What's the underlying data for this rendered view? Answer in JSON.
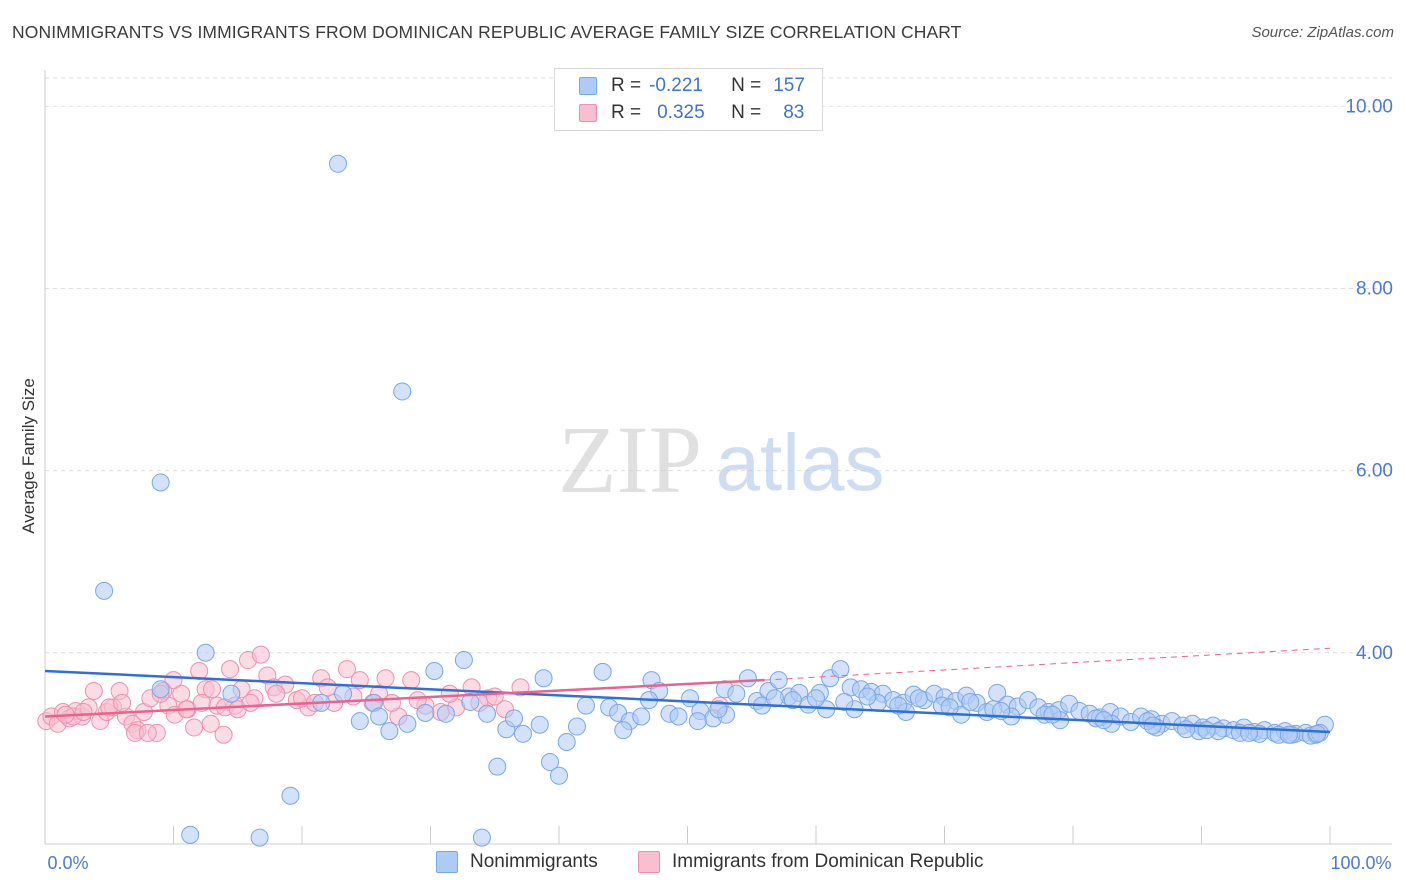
{
  "header": {
    "title": "NONIMMIGRANTS VS IMMIGRANTS FROM DOMINICAN REPUBLIC AVERAGE FAMILY SIZE CORRELATION CHART",
    "source": "Source: ZipAtlas.com"
  },
  "watermark": {
    "zip": "ZIP",
    "atlas": "atlas"
  },
  "stats_legend": {
    "rows": [
      {
        "r_label": "R =",
        "r_value": "-0.221",
        "n_label": "N =",
        "n_value": "157"
      },
      {
        "r_label": "R =",
        "r_value": "0.325",
        "n_label": "N =",
        "n_value": "83"
      }
    ]
  },
  "colors": {
    "blue_fill": "#aecbf5",
    "blue_stroke": "#7aa7e6",
    "blue_line": "#2f6fd6",
    "pink_fill": "#f7bfd0",
    "pink_stroke": "#ef8fb0",
    "pink_line": "#e8638f",
    "grid": "#dddddd",
    "axis_text": "#4a7bd0"
  },
  "chart_data": {
    "type": "scatter",
    "title": "NONIMMIGRANTS VS IMMIGRANTS FROM DOMINICAN REPUBLIC AVERAGE FAMILY SIZE CORRELATION CHART",
    "xlabel": "",
    "ylabel": "Average Family Size",
    "xlim": [
      0,
      100
    ],
    "ylim": [
      1.9,
      10.4
    ],
    "x_tick_labels": [
      "0.0%",
      "100.0%"
    ],
    "y_ticks": [
      4,
      6,
      8,
      10
    ],
    "y_tick_labels": [
      "4.00",
      "6.00",
      "8.00",
      "10.00"
    ],
    "legend_position": "bottom-center",
    "series": [
      {
        "name": "Nonimmigrants",
        "r": -0.221,
        "n": 157,
        "trend": {
          "x0": 0,
          "y0": 3.8,
          "x1": 100,
          "y1": 3.13
        },
        "points": [
          [
            22.8,
            9.37
          ],
          [
            27.8,
            6.87
          ],
          [
            9.0,
            5.87
          ],
          [
            4.6,
            4.68
          ],
          [
            12.5,
            4.0
          ],
          [
            19.1,
            2.43
          ],
          [
            11.3,
            2.0
          ],
          [
            16.7,
            1.97
          ],
          [
            34.0,
            1.97
          ],
          [
            32.6,
            3.92
          ],
          [
            30.3,
            3.8
          ],
          [
            38.8,
            3.72
          ],
          [
            43.4,
            3.79
          ],
          [
            47.2,
            3.7
          ],
          [
            35.2,
            2.75
          ],
          [
            39.3,
            2.8
          ],
          [
            40.0,
            2.65
          ],
          [
            26.8,
            3.14
          ],
          [
            24.5,
            3.25
          ],
          [
            25.6,
            3.45
          ],
          [
            28.2,
            3.22
          ],
          [
            29.6,
            3.34
          ],
          [
            31.2,
            3.33
          ],
          [
            33.1,
            3.46
          ],
          [
            34.4,
            3.33
          ],
          [
            35.9,
            3.16
          ],
          [
            37.2,
            3.11
          ],
          [
            38.5,
            3.21
          ],
          [
            40.6,
            3.02
          ],
          [
            41.4,
            3.19
          ],
          [
            42.1,
            3.42
          ],
          [
            43.9,
            3.4
          ],
          [
            44.6,
            3.34
          ],
          [
            45.5,
            3.25
          ],
          [
            46.4,
            3.3
          ],
          [
            47.8,
            3.58
          ],
          [
            48.6,
            3.33
          ],
          [
            49.3,
            3.3
          ],
          [
            50.2,
            3.5
          ],
          [
            51.0,
            3.36
          ],
          [
            52.0,
            3.28
          ],
          [
            52.9,
            3.6
          ],
          [
            53.8,
            3.55
          ],
          [
            54.7,
            3.72
          ],
          [
            55.4,
            3.47
          ],
          [
            56.3,
            3.58
          ],
          [
            57.1,
            3.7
          ],
          [
            57.9,
            3.52
          ],
          [
            58.7,
            3.56
          ],
          [
            59.4,
            3.43
          ],
          [
            60.3,
            3.56
          ],
          [
            61.1,
            3.72
          ],
          [
            61.9,
            3.82
          ],
          [
            62.7,
            3.62
          ],
          [
            63.5,
            3.6
          ],
          [
            64.3,
            3.57
          ],
          [
            65.2,
            3.55
          ],
          [
            66.0,
            3.48
          ],
          [
            66.8,
            3.45
          ],
          [
            67.6,
            3.54
          ],
          [
            68.4,
            3.48
          ],
          [
            69.2,
            3.55
          ],
          [
            70.0,
            3.51
          ],
          [
            70.9,
            3.47
          ],
          [
            71.7,
            3.53
          ],
          [
            72.5,
            3.45
          ],
          [
            73.3,
            3.35
          ],
          [
            74.1,
            3.56
          ],
          [
            74.9,
            3.43
          ],
          [
            75.7,
            3.41
          ],
          [
            76.5,
            3.48
          ],
          [
            77.3,
            3.4
          ],
          [
            78.1,
            3.35
          ],
          [
            78.9,
            3.37
          ],
          [
            79.7,
            3.44
          ],
          [
            80.5,
            3.36
          ],
          [
            81.3,
            3.33
          ],
          [
            82.1,
            3.29
          ],
          [
            82.9,
            3.35
          ],
          [
            83.7,
            3.3
          ],
          [
            84.5,
            3.24
          ],
          [
            85.3,
            3.3
          ],
          [
            86.1,
            3.27
          ],
          [
            86.9,
            3.22
          ],
          [
            87.7,
            3.25
          ],
          [
            88.5,
            3.2
          ],
          [
            89.3,
            3.22
          ],
          [
            90.1,
            3.18
          ],
          [
            90.9,
            3.2
          ],
          [
            91.7,
            3.17
          ],
          [
            92.5,
            3.15
          ],
          [
            93.3,
            3.18
          ],
          [
            94.1,
            3.13
          ],
          [
            94.9,
            3.15
          ],
          [
            95.7,
            3.12
          ],
          [
            96.5,
            3.14
          ],
          [
            97.3,
            3.11
          ],
          [
            98.1,
            3.12
          ],
          [
            98.9,
            3.1
          ],
          [
            99.6,
            3.21
          ],
          [
            9.0,
            3.6
          ],
          [
            14.5,
            3.55
          ],
          [
            21.5,
            3.45
          ],
          [
            23.2,
            3.55
          ],
          [
            26.0,
            3.3
          ],
          [
            36.5,
            3.28
          ],
          [
            45.0,
            3.15
          ],
          [
            50.8,
            3.25
          ],
          [
            53.0,
            3.32
          ],
          [
            63.0,
            3.38
          ],
          [
            67.0,
            3.35
          ],
          [
            71.3,
            3.32
          ],
          [
            75.2,
            3.3
          ],
          [
            79.0,
            3.26
          ],
          [
            83.0,
            3.22
          ],
          [
            86.5,
            3.18
          ],
          [
            89.8,
            3.14
          ],
          [
            93.0,
            3.12
          ],
          [
            96.0,
            3.1
          ],
          [
            98.5,
            3.09
          ],
          [
            47.0,
            3.48
          ],
          [
            55.8,
            3.42
          ],
          [
            60.8,
            3.38
          ],
          [
            64.8,
            3.45
          ],
          [
            69.8,
            3.42
          ],
          [
            73.8,
            3.38
          ],
          [
            77.8,
            3.32
          ],
          [
            81.8,
            3.28
          ],
          [
            85.8,
            3.25
          ],
          [
            88.8,
            3.16
          ],
          [
            91.3,
            3.14
          ],
          [
            94.5,
            3.11
          ],
          [
            97.0,
            3.1
          ],
          [
            99.2,
            3.12
          ],
          [
            58.2,
            3.48
          ],
          [
            62.2,
            3.46
          ],
          [
            66.4,
            3.42
          ],
          [
            70.4,
            3.4
          ],
          [
            74.4,
            3.36
          ],
          [
            78.4,
            3.32
          ],
          [
            82.4,
            3.26
          ],
          [
            86.2,
            3.2
          ],
          [
            90.4,
            3.15
          ],
          [
            93.7,
            3.12
          ],
          [
            96.8,
            3.1
          ],
          [
            99.0,
            3.11
          ],
          [
            52.4,
            3.38
          ],
          [
            56.8,
            3.5
          ],
          [
            60.0,
            3.5
          ],
          [
            64.0,
            3.52
          ],
          [
            68.0,
            3.5
          ],
          [
            72.0,
            3.46
          ]
        ]
      },
      {
        "name": "Immigrants from Dominican Republic",
        "r": 0.325,
        "n": 83,
        "trend": {
          "x0": 0,
          "y0": 3.3,
          "x1": 56.0,
          "y1": 3.7
        },
        "trend_extension": {
          "x0": 56.0,
          "y0": 3.7,
          "x1": 100,
          "y1": 4.05
        },
        "points": [
          [
            0.1,
            3.25
          ],
          [
            0.5,
            3.3
          ],
          [
            1.0,
            3.22
          ],
          [
            1.4,
            3.35
          ],
          [
            1.9,
            3.28
          ],
          [
            2.4,
            3.36
          ],
          [
            2.9,
            3.3
          ],
          [
            3.4,
            3.4
          ],
          [
            3.8,
            3.58
          ],
          [
            4.3,
            3.25
          ],
          [
            4.8,
            3.35
          ],
          [
            5.3,
            3.4
          ],
          [
            5.8,
            3.58
          ],
          [
            6.3,
            3.3
          ],
          [
            6.8,
            3.22
          ],
          [
            7.2,
            3.15
          ],
          [
            7.7,
            3.35
          ],
          [
            8.2,
            3.5
          ],
          [
            8.7,
            3.12
          ],
          [
            9.2,
            3.58
          ],
          [
            9.6,
            3.42
          ],
          [
            10.1,
            3.32
          ],
          [
            10.6,
            3.55
          ],
          [
            11.1,
            3.38
          ],
          [
            11.6,
            3.18
          ],
          [
            12.0,
            3.8
          ],
          [
            12.5,
            3.6
          ],
          [
            12.9,
            3.22
          ],
          [
            13.4,
            3.42
          ],
          [
            13.9,
            3.1
          ],
          [
            14.4,
            3.82
          ],
          [
            14.8,
            3.42
          ],
          [
            15.3,
            3.6
          ],
          [
            15.8,
            3.92
          ],
          [
            16.3,
            3.5
          ],
          [
            16.8,
            3.98
          ],
          [
            17.3,
            3.75
          ],
          [
            17.8,
            3.62
          ],
          [
            18.7,
            3.65
          ],
          [
            19.6,
            3.48
          ],
          [
            20.5,
            3.4
          ],
          [
            21.5,
            3.72
          ],
          [
            22.5,
            3.45
          ],
          [
            23.5,
            3.82
          ],
          [
            24.5,
            3.7
          ],
          [
            25.5,
            3.45
          ],
          [
            26.5,
            3.72
          ],
          [
            27.5,
            3.3
          ],
          [
            28.5,
            3.7
          ],
          [
            29.6,
            3.42
          ],
          [
            30.8,
            3.35
          ],
          [
            32.0,
            3.4
          ],
          [
            33.2,
            3.62
          ],
          [
            34.5,
            3.5
          ],
          [
            35.8,
            3.38
          ],
          [
            37.0,
            3.62
          ],
          [
            2.2,
            3.3
          ],
          [
            3.0,
            3.35
          ],
          [
            5.0,
            3.4
          ],
          [
            6.0,
            3.45
          ],
          [
            7.0,
            3.12
          ],
          [
            8.0,
            3.12
          ],
          [
            9.0,
            3.55
          ],
          [
            10.0,
            3.7
          ],
          [
            11.0,
            3.38
          ],
          [
            12.2,
            3.45
          ],
          [
            13.0,
            3.6
          ],
          [
            14.0,
            3.4
          ],
          [
            15.0,
            3.38
          ],
          [
            16.0,
            3.45
          ],
          [
            18.0,
            3.55
          ],
          [
            20.0,
            3.5
          ],
          [
            21.0,
            3.45
          ],
          [
            22.0,
            3.62
          ],
          [
            24.0,
            3.52
          ],
          [
            26.0,
            3.55
          ],
          [
            27.0,
            3.45
          ],
          [
            29.0,
            3.48
          ],
          [
            31.5,
            3.55
          ],
          [
            33.8,
            3.45
          ],
          [
            35.0,
            3.52
          ],
          [
            52.5,
            3.42
          ],
          [
            1.6,
            3.32
          ]
        ]
      }
    ]
  },
  "bottom_legend": {
    "items": [
      {
        "label": "Nonimmigrants"
      },
      {
        "label": "Immigrants from Dominican Republic"
      }
    ]
  }
}
